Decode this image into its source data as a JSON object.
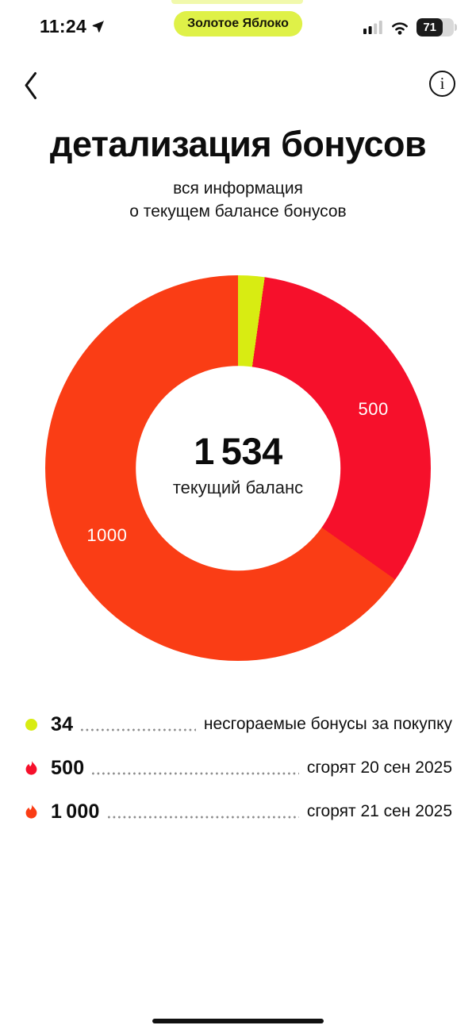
{
  "status_bar": {
    "time": "11:24",
    "app_badge": "Золотое Яблоко",
    "battery_percent": "71"
  },
  "nav": {
    "info_symbol": "i"
  },
  "header": {
    "title": "детализация бонусов",
    "subtitle_line1": "вся информация",
    "subtitle_line2": "о текущем балансе бонусов"
  },
  "chart_data": {
    "type": "pie",
    "title": "детализация бонусов",
    "center_value": "1 534",
    "center_caption": "текущий баланс",
    "total": 1534,
    "start_angle_deg": 0,
    "hole_ratio": 0.53,
    "label_radius_ratio": 0.765,
    "label_color": "#ffffff",
    "legend_position": "bottom",
    "segments": [
      {
        "name": "несгораемые бонусы за покупку",
        "value": 34,
        "color": "#d8ec12",
        "label": ""
      },
      {
        "name": "сгорят 20 сен 2025",
        "value": 500,
        "color": "#f6102b",
        "label": "500"
      },
      {
        "name": "сгорят 21 сен 2025",
        "value": 1000,
        "color": "#fa3d15",
        "label": "1000"
      }
    ]
  },
  "legend": {
    "items": [
      {
        "icon": "dot",
        "color": "#d8ec12",
        "value": "34",
        "text": "несгораемые бонусы за покупку"
      },
      {
        "icon": "flame",
        "color": "#f6102b",
        "value": "500",
        "text": "сгорят 20 сен 2025"
      },
      {
        "icon": "flame",
        "color": "#fa3d15",
        "value": "1 000",
        "text": "сгорят 21 сен 2025"
      }
    ]
  }
}
